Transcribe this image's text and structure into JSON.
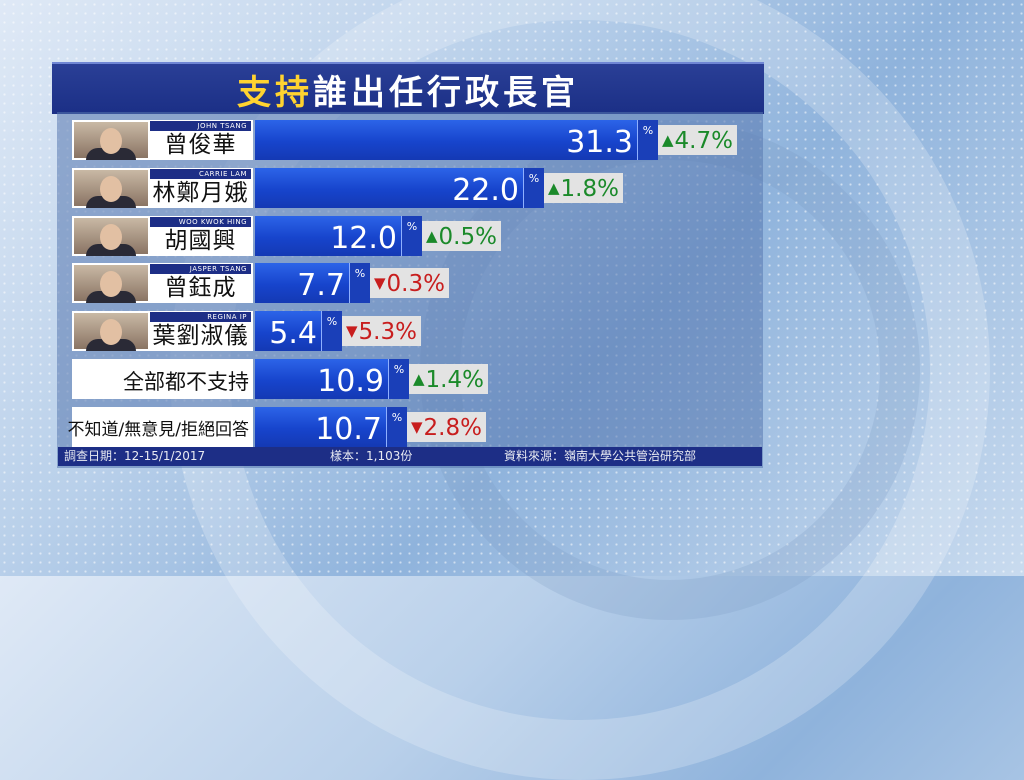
{
  "title": {
    "highlight": "支持",
    "rest": "誰出任行政長官"
  },
  "chart_data": {
    "type": "bar",
    "title": "支持誰出任行政長官",
    "unit": "%",
    "categories": [
      "曾俊華",
      "林鄭月娥",
      "胡國興",
      "曾鈺成",
      "葉劉淑儀",
      "全部都不支持",
      "不知道/無意見/拒絕回答"
    ],
    "english_names": [
      "JOHN TSANG",
      "CARRIE LAM",
      "WOO KWOK HING",
      "JASPER TSANG",
      "REGINA IP",
      "",
      ""
    ],
    "values": [
      31.3,
      22.0,
      12.0,
      7.7,
      5.4,
      10.9,
      10.7
    ],
    "value_labels": [
      "31.3",
      "22.0",
      "12.0",
      "7.7",
      "5.4",
      "10.9",
      "10.7"
    ],
    "changes": [
      "4.7%",
      "1.8%",
      "0.5%",
      "0.3%",
      "5.3%",
      "1.4%",
      "2.8%"
    ],
    "change_direction": [
      "up",
      "up",
      "up",
      "down",
      "down",
      "up",
      "down"
    ]
  },
  "colors": {
    "up": "#1b8a2a",
    "down": "#c81e1e",
    "bar": "#1f4fd8",
    "title_highlight": "#ffd330"
  },
  "footer": {
    "date": "調查日期：12-15/1/2017",
    "sample": "樣本：1,103份",
    "source": "資料來源：嶺南大學公共管治研究部"
  }
}
